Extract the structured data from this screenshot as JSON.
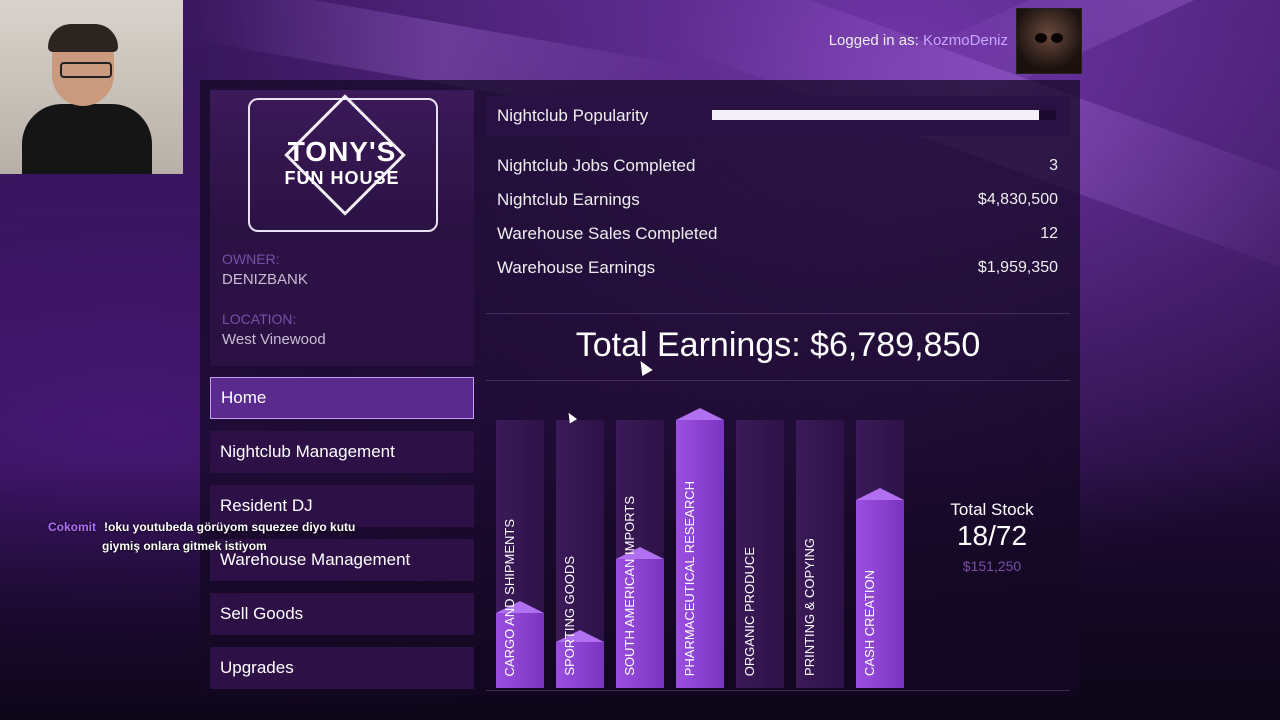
{
  "header": {
    "logged_in_label": "Logged in as:",
    "username": "KozmoDeniz"
  },
  "business": {
    "logo_line1": "TONY'S",
    "logo_line2": "FUN HOUSE",
    "owner_label": "OWNER:",
    "owner_value": "DENIZBANK",
    "location_label": "LOCATION:",
    "location_value": "West Vinewood"
  },
  "menu": {
    "items": [
      {
        "label": "Home"
      },
      {
        "label": "Nightclub Management"
      },
      {
        "label": "Resident DJ"
      },
      {
        "label": "Warehouse Management"
      },
      {
        "label": "Sell Goods"
      },
      {
        "label": "Upgrades"
      }
    ]
  },
  "popularity": {
    "label": "Nightclub Popularity",
    "value_fraction": 0.95
  },
  "stats": [
    {
      "label": "Nightclub Jobs Completed",
      "value": "3"
    },
    {
      "label": "Nightclub Earnings",
      "value": "$4,830,500"
    },
    {
      "label": "Warehouse Sales Completed",
      "value": "12"
    },
    {
      "label": "Warehouse Earnings",
      "value": "$1,959,350"
    }
  ],
  "total_earnings": "Total Earnings: $6,789,850",
  "stock": {
    "title": "Total Stock",
    "count": "18/72",
    "value": "$151,250",
    "categories": [
      {
        "label": "CARGO AND SHIPMENTS",
        "fill": 0.28
      },
      {
        "label": "SPORTING GOODS",
        "fill": 0.17
      },
      {
        "label": "SOUTH AMERICAN IMPORTS",
        "fill": 0.48
      },
      {
        "label": "PHARMACEUTICAL RESEARCH",
        "fill": 1.0
      },
      {
        "label": "ORGANIC PRODUCE",
        "fill": 0.0
      },
      {
        "label": "PRINTING & COPYING",
        "fill": 0.0
      },
      {
        "label": "CASH CREATION",
        "fill": 0.7
      }
    ]
  },
  "chat": {
    "user": "Cokomit",
    "message_line1": "!oku youtubeda görüyom squezee diyo kutu",
    "message_line2": "giymiş onlara gitmek istiyom"
  }
}
